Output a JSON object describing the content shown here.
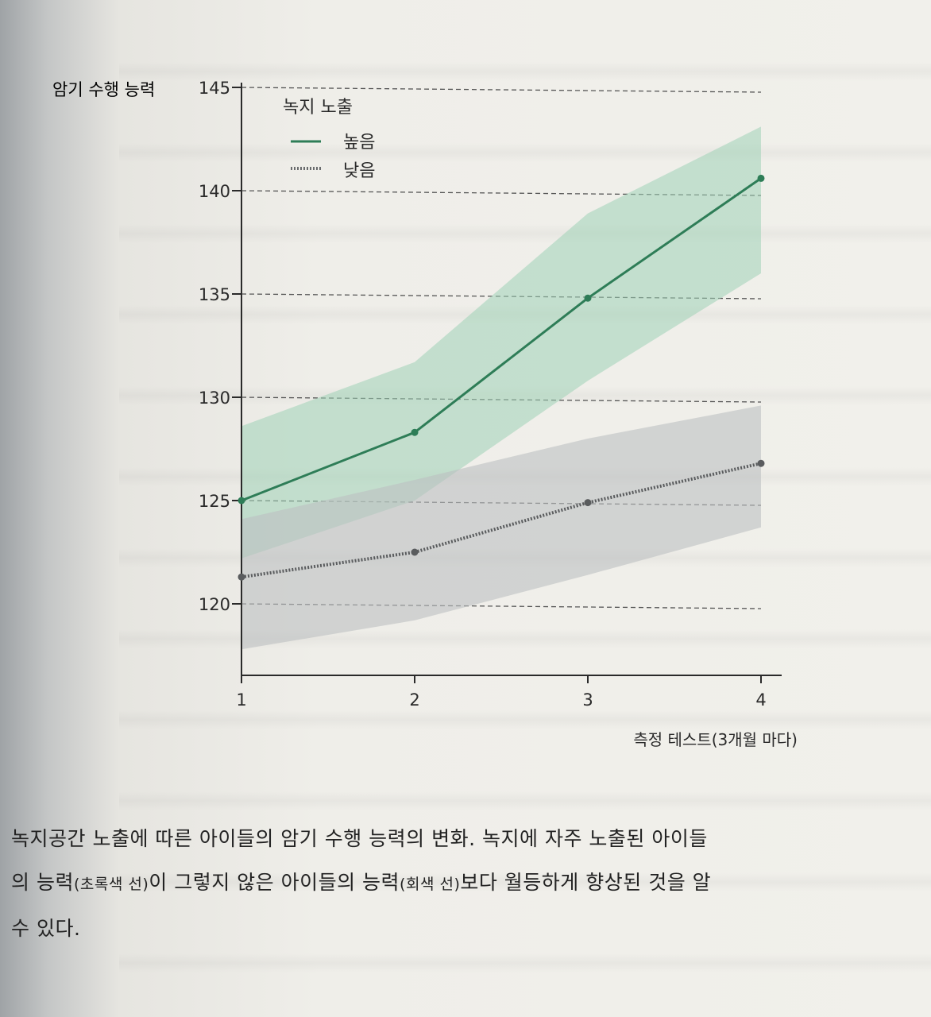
{
  "chart_data": {
    "type": "line",
    "title": "",
    "xlabel": "측정 테스트(3개월 마다)",
    "ylabel": "암기 수행 능력",
    "x": [
      1,
      2,
      3,
      4
    ],
    "xlim": [
      1,
      4
    ],
    "ylim": [
      117,
      145
    ],
    "yticks": [
      120,
      125,
      130,
      135,
      140,
      145
    ],
    "grid": "horizontal dashed",
    "legend": {
      "title": "녹지 노출",
      "placement": "top-left"
    },
    "series": [
      {
        "name": "높음",
        "color": "#2e7d57",
        "band_color": "#9fd1b6",
        "style": "solid",
        "values": [
          125,
          128.3,
          134.8,
          140.6
        ],
        "lower": [
          122.2,
          125.0,
          130.8,
          136.0
        ],
        "upper": [
          128.6,
          131.7,
          138.9,
          143.1
        ]
      },
      {
        "name": "낮음",
        "color": "#5a5c5e",
        "band_color": "#bdbfc1",
        "style": "dotted",
        "values": [
          121.3,
          122.5,
          124.9,
          126.8
        ],
        "lower": [
          117.8,
          119.2,
          121.4,
          123.7
        ],
        "upper": [
          124.1,
          126.0,
          128.0,
          129.6
        ]
      }
    ]
  },
  "caption": {
    "line1": "녹지공간 노출에 따른 아이들의 암기 수행 능력의 변화. 녹지에 자주 노출된 아이들",
    "line2_a": "의 능력",
    "line2_b": "(초록색 선)",
    "line2_c": "이 그렇지 않은 아이들의 능력",
    "line2_d": "(회색 선)",
    "line2_e": "보다 월등하게 향상된 것을 알",
    "line3": "수 있다."
  }
}
